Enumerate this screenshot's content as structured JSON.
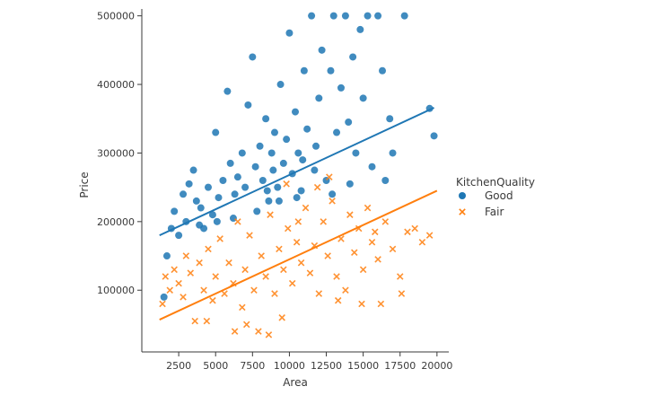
{
  "chart_data": {
    "type": "scatter",
    "title": "",
    "xlabel": "Area",
    "ylabel": "Price",
    "xlim": [
      0,
      20800
    ],
    "ylim": [
      10000,
      510000
    ],
    "xticks": [
      2500,
      5000,
      7500,
      10000,
      12500,
      15000,
      17500,
      20000
    ],
    "yticks": [
      100000,
      200000,
      300000,
      400000,
      500000
    ],
    "grid": false,
    "legend": {
      "title": "KitchenQuality",
      "position": "right",
      "entries": [
        "Good",
        "Fair"
      ]
    },
    "series": [
      {
        "name": "Good",
        "marker": "circle",
        "color": "#1f77b4",
        "fit_line": {
          "x": [
            1200,
            19800
          ],
          "y": [
            180000,
            366000
          ]
        },
        "points": [
          [
            1500,
            90000
          ],
          [
            1700,
            150000
          ],
          [
            2000,
            190000
          ],
          [
            2200,
            215000
          ],
          [
            2500,
            180000
          ],
          [
            2800,
            240000
          ],
          [
            3000,
            200000
          ],
          [
            3200,
            255000
          ],
          [
            3500,
            275000
          ],
          [
            3700,
            230000
          ],
          [
            4000,
            220000
          ],
          [
            4200,
            190000
          ],
          [
            4500,
            250000
          ],
          [
            4800,
            210000
          ],
          [
            5000,
            330000
          ],
          [
            5200,
            235000
          ],
          [
            5500,
            260000
          ],
          [
            5800,
            390000
          ],
          [
            6000,
            285000
          ],
          [
            6300,
            240000
          ],
          [
            6500,
            265000
          ],
          [
            6800,
            300000
          ],
          [
            7000,
            250000
          ],
          [
            7200,
            370000
          ],
          [
            7500,
            440000
          ],
          [
            7700,
            280000
          ],
          [
            8000,
            310000
          ],
          [
            8200,
            260000
          ],
          [
            8400,
            350000
          ],
          [
            8600,
            230000
          ],
          [
            8800,
            300000
          ],
          [
            9000,
            330000
          ],
          [
            9200,
            250000
          ],
          [
            9400,
            400000
          ],
          [
            9600,
            285000
          ],
          [
            9800,
            320000
          ],
          [
            10000,
            475000
          ],
          [
            10200,
            270000
          ],
          [
            10400,
            360000
          ],
          [
            10600,
            300000
          ],
          [
            10800,
            245000
          ],
          [
            11000,
            420000
          ],
          [
            11200,
            335000
          ],
          [
            11500,
            500000
          ],
          [
            11800,
            310000
          ],
          [
            12000,
            380000
          ],
          [
            12200,
            450000
          ],
          [
            12500,
            260000
          ],
          [
            12800,
            420000
          ],
          [
            13000,
            500000
          ],
          [
            13200,
            330000
          ],
          [
            13500,
            395000
          ],
          [
            13800,
            500000
          ],
          [
            14000,
            345000
          ],
          [
            14300,
            440000
          ],
          [
            14500,
            300000
          ],
          [
            14800,
            480000
          ],
          [
            15000,
            380000
          ],
          [
            15300,
            500000
          ],
          [
            15600,
            280000
          ],
          [
            16000,
            500000
          ],
          [
            16300,
            420000
          ],
          [
            16500,
            260000
          ],
          [
            16800,
            350000
          ],
          [
            17000,
            300000
          ],
          [
            17800,
            500000
          ],
          [
            19500,
            365000
          ],
          [
            19800,
            325000
          ],
          [
            8500,
            245000
          ],
          [
            9300,
            230000
          ],
          [
            10500,
            235000
          ],
          [
            7800,
            215000
          ],
          [
            11700,
            275000
          ],
          [
            12900,
            240000
          ],
          [
            14100,
            255000
          ],
          [
            6200,
            205000
          ],
          [
            5100,
            200000
          ],
          [
            3900,
            195000
          ],
          [
            8900,
            275000
          ],
          [
            10900,
            290000
          ]
        ]
      },
      {
        "name": "Fair",
        "marker": "x",
        "color": "#ff7f0e",
        "fit_line": {
          "x": [
            1200,
            20000
          ],
          "y": [
            57000,
            245000
          ]
        },
        "points": [
          [
            1400,
            80000
          ],
          [
            1600,
            120000
          ],
          [
            1900,
            100000
          ],
          [
            2200,
            130000
          ],
          [
            2500,
            110000
          ],
          [
            2800,
            90000
          ],
          [
            3000,
            150000
          ],
          [
            3300,
            125000
          ],
          [
            3600,
            55000
          ],
          [
            3900,
            140000
          ],
          [
            4200,
            100000
          ],
          [
            4500,
            160000
          ],
          [
            4800,
            85000
          ],
          [
            5000,
            120000
          ],
          [
            5300,
            175000
          ],
          [
            5600,
            95000
          ],
          [
            5900,
            140000
          ],
          [
            6200,
            110000
          ],
          [
            6500,
            200000
          ],
          [
            6800,
            75000
          ],
          [
            7000,
            130000
          ],
          [
            7300,
            180000
          ],
          [
            7600,
            100000
          ],
          [
            7900,
            40000
          ],
          [
            8100,
            150000
          ],
          [
            8400,
            120000
          ],
          [
            8700,
            210000
          ],
          [
            9000,
            95000
          ],
          [
            9300,
            160000
          ],
          [
            9600,
            130000
          ],
          [
            9900,
            190000
          ],
          [
            10200,
            110000
          ],
          [
            10500,
            170000
          ],
          [
            10800,
            140000
          ],
          [
            11100,
            220000
          ],
          [
            11400,
            125000
          ],
          [
            11700,
            165000
          ],
          [
            12000,
            95000
          ],
          [
            12300,
            200000
          ],
          [
            12600,
            150000
          ],
          [
            12900,
            230000
          ],
          [
            13200,
            120000
          ],
          [
            13500,
            175000
          ],
          [
            13800,
            100000
          ],
          [
            14100,
            210000
          ],
          [
            14400,
            155000
          ],
          [
            14700,
            190000
          ],
          [
            15000,
            130000
          ],
          [
            15300,
            220000
          ],
          [
            15600,
            170000
          ],
          [
            16000,
            145000
          ],
          [
            16500,
            200000
          ],
          [
            17000,
            160000
          ],
          [
            17500,
            120000
          ],
          [
            18000,
            185000
          ],
          [
            18500,
            190000
          ],
          [
            19000,
            170000
          ],
          [
            19500,
            180000
          ],
          [
            16200,
            80000
          ],
          [
            14900,
            80000
          ],
          [
            17600,
            95000
          ],
          [
            15800,
            185000
          ],
          [
            13300,
            85000
          ],
          [
            9500,
            60000
          ],
          [
            8600,
            35000
          ],
          [
            7100,
            50000
          ],
          [
            6300,
            40000
          ],
          [
            4400,
            55000
          ],
          [
            11900,
            250000
          ],
          [
            10600,
            200000
          ],
          [
            9800,
            255000
          ],
          [
            12700,
            265000
          ]
        ]
      }
    ]
  }
}
